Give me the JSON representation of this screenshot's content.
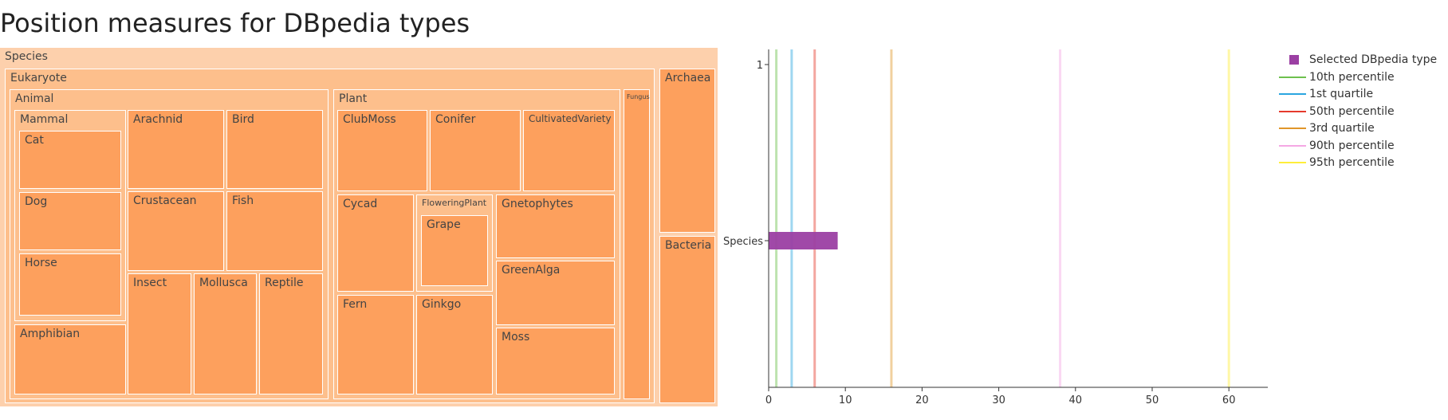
{
  "page": {
    "title": "Position measures for DBpedia types"
  },
  "colors": {
    "treemap_root": "#fdd0ac",
    "treemap_mid": "#fdbf8c",
    "treemap_leaf": "#fda05d",
    "treemap_border": "#ffffff",
    "selected": "#9b3fa3"
  },
  "chart_data": [
    {
      "type": "treemap",
      "hierarchy": [
        {
          "label": "Species",
          "parent": ""
        },
        {
          "label": "Eukaryote",
          "parent": "Species"
        },
        {
          "label": "Archaea",
          "parent": "Species"
        },
        {
          "label": "Bacteria",
          "parent": "Species"
        },
        {
          "label": "Animal",
          "parent": "Eukaryote"
        },
        {
          "label": "Plant",
          "parent": "Eukaryote"
        },
        {
          "label": "Fungus",
          "parent": "Eukaryote"
        },
        {
          "label": "Mammal",
          "parent": "Animal"
        },
        {
          "label": "Cat",
          "parent": "Mammal"
        },
        {
          "label": "Dog",
          "parent": "Mammal"
        },
        {
          "label": "Horse",
          "parent": "Mammal"
        },
        {
          "label": "Amphibian",
          "parent": "Animal"
        },
        {
          "label": "Arachnid",
          "parent": "Animal"
        },
        {
          "label": "Bird",
          "parent": "Animal"
        },
        {
          "label": "Crustacean",
          "parent": "Animal"
        },
        {
          "label": "Fish",
          "parent": "Animal"
        },
        {
          "label": "Insect",
          "parent": "Animal"
        },
        {
          "label": "Mollusca",
          "parent": "Animal"
        },
        {
          "label": "Reptile",
          "parent": "Animal"
        },
        {
          "label": "ClubMoss",
          "parent": "Plant"
        },
        {
          "label": "Conifer",
          "parent": "Plant"
        },
        {
          "label": "CultivatedVariety",
          "parent": "Plant"
        },
        {
          "label": "Cycad",
          "parent": "Plant"
        },
        {
          "label": "FloweringPlant",
          "parent": "Plant"
        },
        {
          "label": "Grape",
          "parent": "FloweringPlant"
        },
        {
          "label": "Gnetophytes",
          "parent": "Plant"
        },
        {
          "label": "GreenAlga",
          "parent": "Plant"
        },
        {
          "label": "Fern",
          "parent": "Plant"
        },
        {
          "label": "Ginkgo",
          "parent": "Plant"
        },
        {
          "label": "Moss",
          "parent": "Plant"
        }
      ]
    },
    {
      "type": "bar",
      "orientation": "horizontal",
      "categories": [
        "Species",
        "1"
      ],
      "series": [
        {
          "name": "Selected DBpedia type",
          "values": [
            9,
            null
          ],
          "color": "#9b3fa3"
        }
      ],
      "reference_lines": [
        {
          "name": "10th percentile",
          "value": 1,
          "color": "#6dc04e"
        },
        {
          "name": "1st quartile",
          "value": 3,
          "color": "#2aa6e0"
        },
        {
          "name": "50th percentile",
          "value": 6,
          "color": "#e53a2c"
        },
        {
          "name": "3rd quartile",
          "value": 16,
          "color": "#e0962a"
        },
        {
          "name": "90th percentile",
          "value": 38,
          "color": "#f5a8e4"
        },
        {
          "name": "95th percentile",
          "value": 60,
          "color": "#ffee3a"
        }
      ],
      "xlim": [
        0,
        65
      ],
      "xticks": [
        0,
        10,
        20,
        30,
        40,
        50,
        60
      ],
      "yticks": [
        "Species",
        "1"
      ],
      "legend_position": "right"
    }
  ]
}
